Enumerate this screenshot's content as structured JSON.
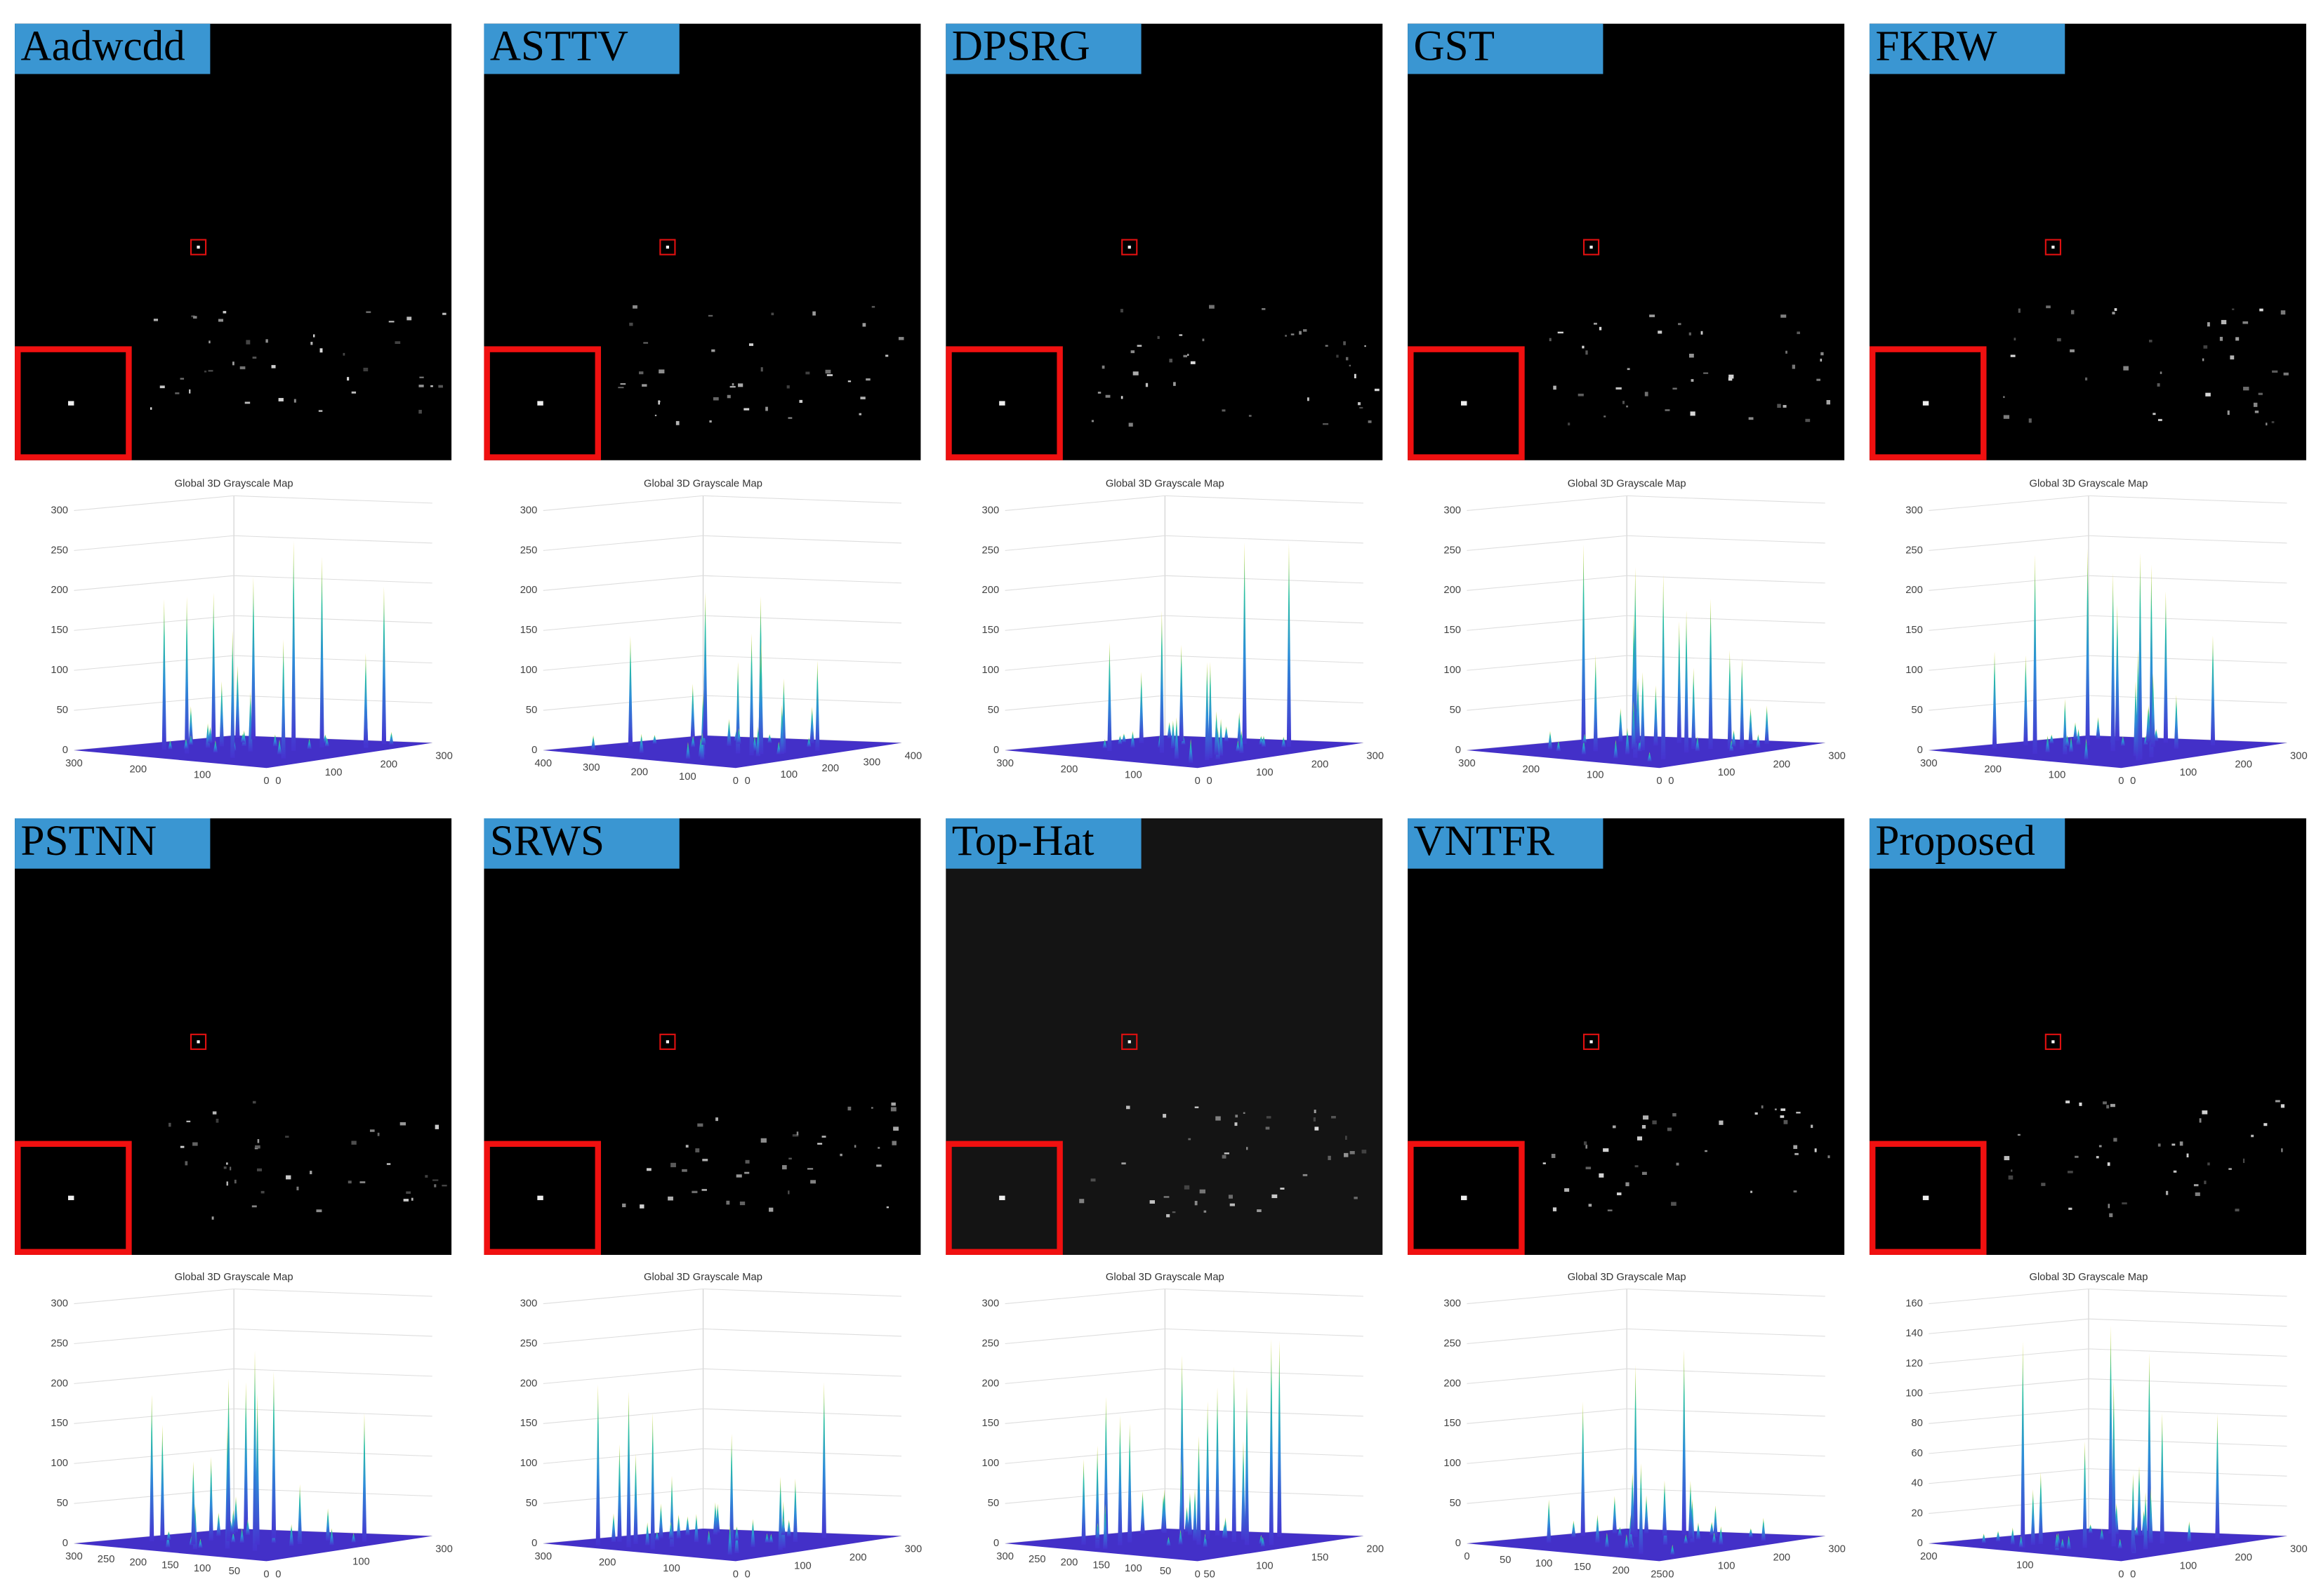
{
  "panels": [
    {
      "label": "Aadwcdd",
      "plot_title": "Global 3D Grayscale Map",
      "zticks": [
        0,
        50,
        100,
        150,
        200,
        250,
        300
      ],
      "xticks": [
        300,
        200,
        100,
        0
      ],
      "yticks": [
        0,
        100,
        200,
        300
      ]
    },
    {
      "label": "ASTTV",
      "plot_title": "Global 3D Grayscale Map",
      "zticks": [
        0,
        50,
        100,
        150,
        200,
        250,
        300
      ],
      "xticks": [
        400,
        300,
        200,
        100,
        0
      ],
      "yticks": [
        0,
        100,
        200,
        300,
        400
      ]
    },
    {
      "label": "DPSRG",
      "plot_title": "Global 3D Grayscale Map",
      "zticks": [
        0,
        50,
        100,
        150,
        200,
        250,
        300
      ],
      "xticks": [
        300,
        200,
        100,
        0
      ],
      "yticks": [
        0,
        100,
        200,
        300
      ]
    },
    {
      "label": "GST",
      "plot_title": "Global 3D Grayscale Map",
      "zticks": [
        0,
        50,
        100,
        150,
        200,
        250,
        300
      ],
      "xticks": [
        300,
        200,
        100,
        0
      ],
      "yticks": [
        0,
        100,
        200,
        300
      ]
    },
    {
      "label": "FKRW",
      "plot_title": "Global 3D Grayscale Map",
      "zticks": [
        0,
        50,
        100,
        150,
        200,
        250,
        300
      ],
      "xticks": [
        300,
        200,
        100,
        0
      ],
      "yticks": [
        0,
        100,
        200,
        300
      ]
    },
    {
      "label": "PSTNN",
      "plot_title": "Global 3D Grayscale Map",
      "zticks": [
        0,
        50,
        100,
        150,
        200,
        250,
        300
      ],
      "xticks": [
        300,
        250,
        200,
        150,
        100,
        50,
        0
      ],
      "yticks": [
        0,
        100,
        300
      ]
    },
    {
      "label": "SRWS",
      "plot_title": "Global 3D Grayscale Map",
      "zticks": [
        0,
        50,
        100,
        150,
        200,
        250,
        300
      ],
      "xticks": [
        300,
        200,
        100,
        0
      ],
      "yticks": [
        0,
        100,
        200,
        300
      ]
    },
    {
      "label": "Top-Hat",
      "plot_title": "Global 3D Grayscale Map",
      "zticks": [
        0,
        50,
        100,
        150,
        200,
        250,
        300
      ],
      "xticks": [
        300,
        250,
        200,
        150,
        100,
        50,
        0
      ],
      "yticks": [
        50,
        100,
        150,
        200
      ]
    },
    {
      "label": "VNTFR",
      "plot_title": "Global 3D Grayscale Map",
      "zticks": [
        0,
        50,
        100,
        150,
        200,
        250,
        300
      ],
      "xticks": [
        0,
        50,
        100,
        150,
        200,
        250
      ],
      "yticks": [
        0,
        100,
        200,
        300
      ]
    },
    {
      "label": "Proposed",
      "plot_title": "Global 3D Grayscale Map",
      "zticks": [
        0,
        20,
        40,
        60,
        80,
        100,
        120,
        140,
        160
      ],
      "xticks": [
        200,
        100,
        0
      ],
      "yticks": [
        0,
        100,
        200,
        300
      ]
    }
  ]
}
